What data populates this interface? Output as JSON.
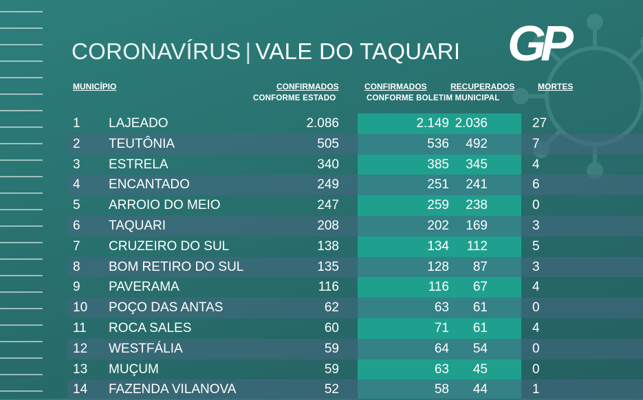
{
  "title": {
    "part1": "CORONAVÍRUS",
    "separator": "|",
    "part2": "VALE DO TAQUARI"
  },
  "logo": {
    "text": "GP"
  },
  "headers": {
    "municipio": "MUNICÍPIO",
    "confirmados_estado": "CONFIRMADOS",
    "confirmados_estado_sub": "CONFORME ESTADO",
    "confirmados_boletim": "CONFIRMADOS",
    "recuperados": "RECUPERADOS",
    "boletim_sub": "CONFORME BOLETIM MUNICIPAL",
    "mortes": "MORTES"
  },
  "rows": [
    {
      "num": "1",
      "name": "LAJEADO",
      "estado": "2.086",
      "boletim": "2.149",
      "recuperados": "2.036",
      "mortes": "27"
    },
    {
      "num": "2",
      "name": "TEUTÔNIA",
      "estado": "505",
      "boletim": "536",
      "recuperados": "492",
      "mortes": "7"
    },
    {
      "num": "3",
      "name": "ESTRELA",
      "estado": "340",
      "boletim": "385",
      "recuperados": "345",
      "mortes": "4"
    },
    {
      "num": "4",
      "name": "ENCANTADO",
      "estado": "249",
      "boletim": "251",
      "recuperados": "241",
      "mortes": "6"
    },
    {
      "num": "5",
      "name": "ARROIO DO MEIO",
      "estado": "247",
      "boletim": "259",
      "recuperados": "238",
      "mortes": "0"
    },
    {
      "num": "6",
      "name": "TAQUARI",
      "estado": "208",
      "boletim": "202",
      "recuperados": "169",
      "mortes": "3"
    },
    {
      "num": "7",
      "name": "CRUZEIRO DO SUL",
      "estado": "138",
      "boletim": "134",
      "recuperados": "112",
      "mortes": "5"
    },
    {
      "num": "8",
      "name": "BOM RETIRO DO SUL",
      "estado": "135",
      "boletim": "128",
      "recuperados": "87",
      "mortes": "3"
    },
    {
      "num": "9",
      "name": "PAVERAMA",
      "estado": "116",
      "boletim": "116",
      "recuperados": "67",
      "mortes": "4"
    },
    {
      "num": "10",
      "name": "POÇO DAS ANTAS",
      "estado": "62",
      "boletim": "63",
      "recuperados": "61",
      "mortes": "0"
    },
    {
      "num": "11",
      "name": "ROCA SALES",
      "estado": "60",
      "boletim": "71",
      "recuperados": "61",
      "mortes": "4"
    },
    {
      "num": "12",
      "name": "WESTFÁLIA",
      "estado": "59",
      "boletim": "64",
      "recuperados": "54",
      "mortes": "0"
    },
    {
      "num": "13",
      "name": "MUÇUM",
      "estado": "59",
      "boletim": "63",
      "recuperados": "45",
      "mortes": "0"
    },
    {
      "num": "14",
      "name": "FAZENDA VILANOVA",
      "estado": "52",
      "boletim": "58",
      "recuperados": "44",
      "mortes": "1"
    }
  ],
  "colors": {
    "background": "#2a7573",
    "highlight_column": "#1fa08e",
    "alt_row": "#466880"
  }
}
